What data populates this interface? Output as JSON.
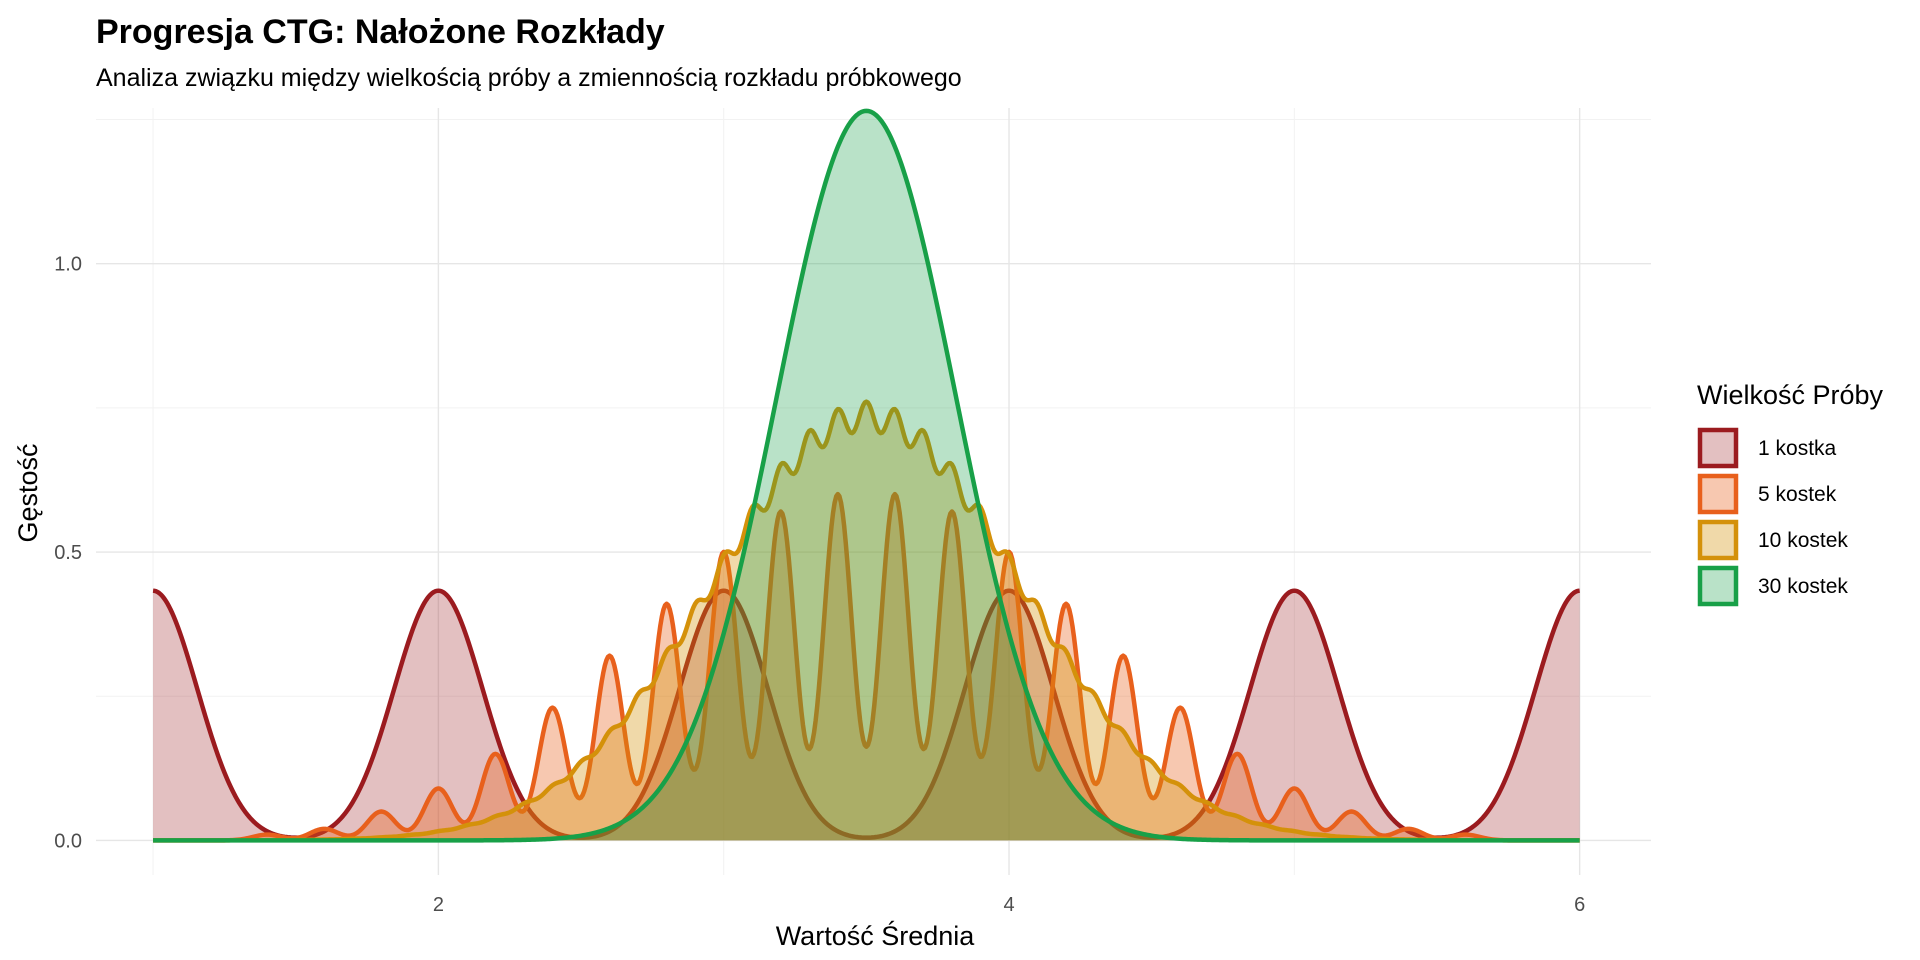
{
  "chart_data": {
    "type": "area",
    "title": "Progresja CTG: Nałożone Rozkłady",
    "subtitle": "Analiza związku między wielkością próby a zmiennością rozkładu próbkowego",
    "xlabel": "Wartość Średnia",
    "ylabel": "Gęstość",
    "xlim": [
      0.8,
      6.25
    ],
    "ylim": [
      -0.06,
      1.27
    ],
    "x_ticks": [
      2,
      4,
      6
    ],
    "x_tick_labels": [
      "2",
      "4",
      "6"
    ],
    "y_ticks": [
      0.0,
      0.5,
      1.0
    ],
    "y_tick_labels": [
      "0.0",
      "0.5",
      "1.0"
    ],
    "grid": true,
    "legend": {
      "title": "Wielkość Próby",
      "placement": "right"
    },
    "series": [
      {
        "name": "1 kostka",
        "color": "#9B1B1F",
        "fill_opacity": 0.28,
        "x_range": [
          1,
          6
        ],
        "bandwidth": 0.155,
        "peaks": [
          [
            1,
            0.433
          ],
          [
            2,
            0.433
          ],
          [
            3,
            0.433
          ],
          [
            4,
            0.433
          ],
          [
            5,
            0.433
          ],
          [
            6,
            0.433
          ]
        ]
      },
      {
        "name": "5 kostek",
        "color": "#E8601C",
        "fill_opacity": 0.35,
        "x_range": [
          1,
          6
        ],
        "bandwidth": 0.05,
        "peaks": [
          [
            1.4,
            0.01
          ],
          [
            1.6,
            0.02
          ],
          [
            1.8,
            0.05
          ],
          [
            2.0,
            0.09
          ],
          [
            2.2,
            0.15
          ],
          [
            2.4,
            0.23
          ],
          [
            2.6,
            0.32
          ],
          [
            2.8,
            0.41
          ],
          [
            3.0,
            0.5
          ],
          [
            3.2,
            0.57
          ],
          [
            3.4,
            0.6
          ],
          [
            3.6,
            0.6
          ],
          [
            3.8,
            0.57
          ],
          [
            4.0,
            0.5
          ],
          [
            4.2,
            0.41
          ],
          [
            4.4,
            0.32
          ],
          [
            4.6,
            0.23
          ],
          [
            4.8,
            0.15
          ],
          [
            5.0,
            0.09
          ],
          [
            5.2,
            0.05
          ],
          [
            5.4,
            0.02
          ],
          [
            5.6,
            0.01
          ]
        ]
      },
      {
        "name": "10 kostek",
        "color": "#D4910A",
        "fill_opacity": 0.35,
        "x_range": [
          1,
          6
        ],
        "bandwidth": 0.045,
        "base_mean": 3.5,
        "base_sd": 0.54,
        "peak_density": 0.735
      },
      {
        "name": "30 kostek",
        "color": "#18A048",
        "fill_opacity": 0.3,
        "x_range": [
          1,
          6
        ],
        "mean": 3.5,
        "sd": 0.315,
        "peak_density": 1.265
      }
    ]
  }
}
